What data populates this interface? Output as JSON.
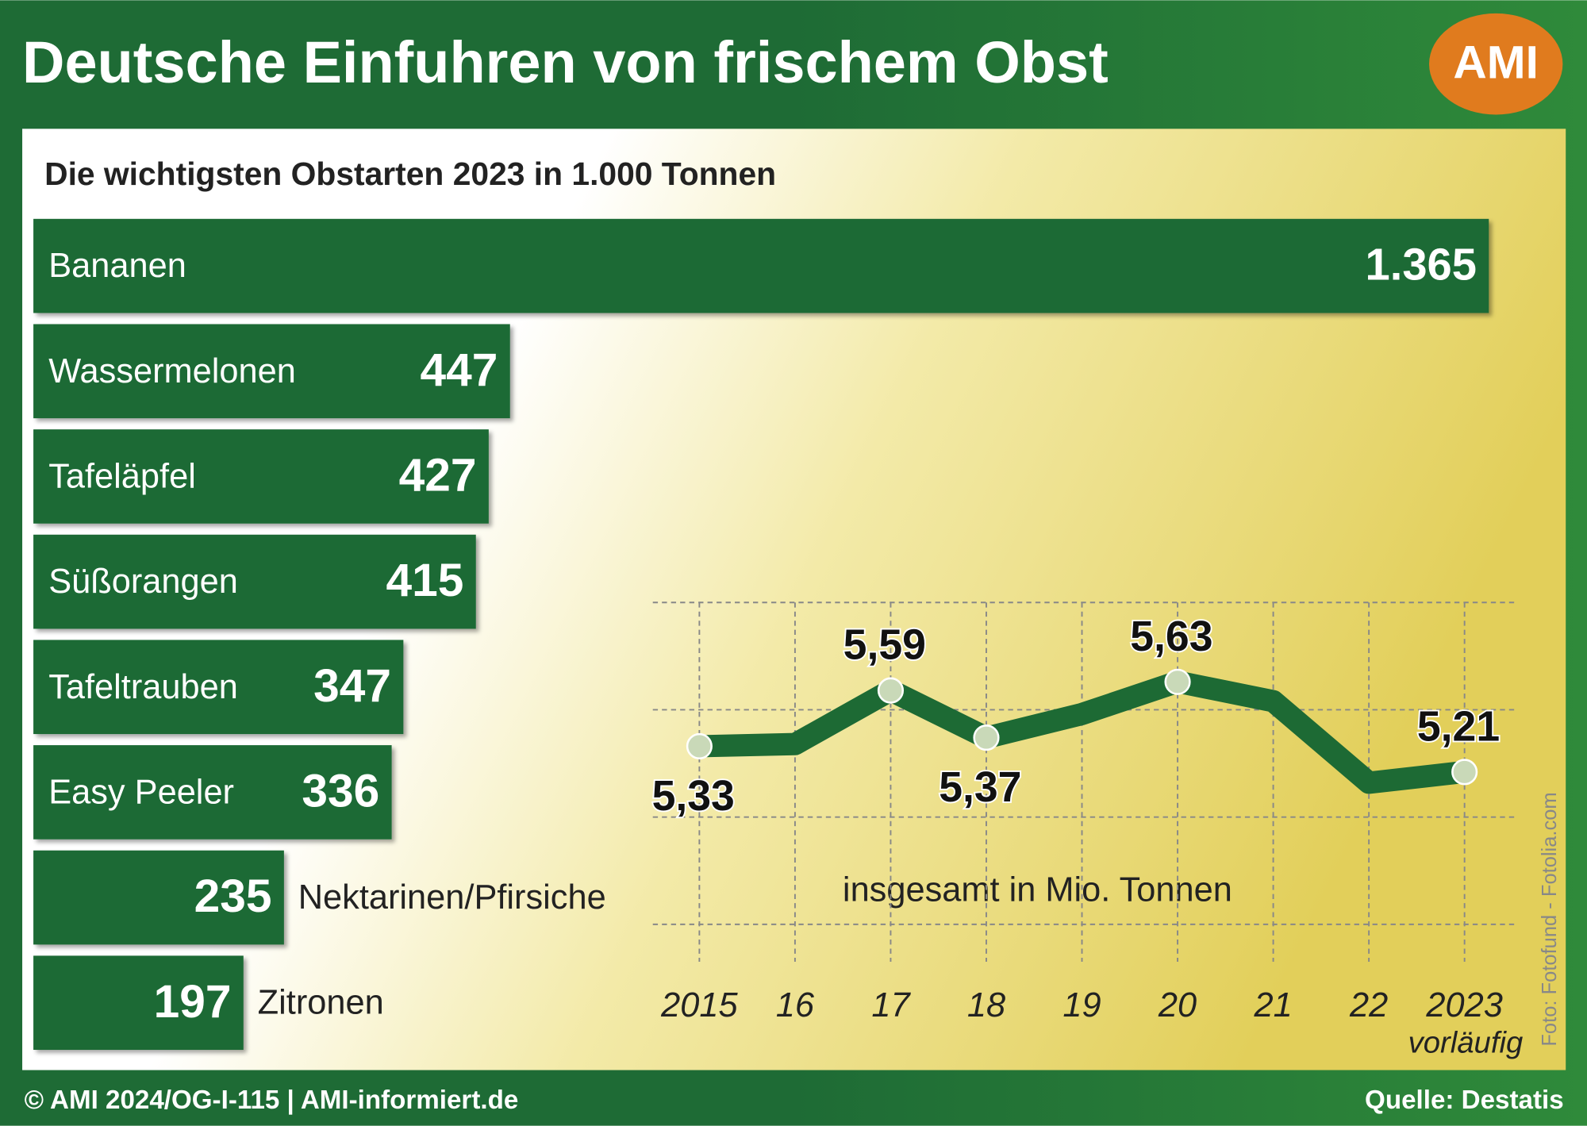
{
  "title": "Deutsche Einfuhren von frischem Obst",
  "logo": "AMI",
  "footer_left": "© AMI 2024/OG-I-115 | AMI-informiert.de",
  "source": "Quelle: Destatis",
  "photo_credit": "Foto: Fotofund - Fotolia.com",
  "chart_data": [
    {
      "type": "hbar",
      "title": "Die wichtigsten Obstarten 2023 in 1.000 Tonnen",
      "categories": [
        "Bananen",
        "Wassermelonen",
        "Tafeläpfel",
        "Süßorangen",
        "Tafeltrauben",
        "Easy Peeler",
        "Nektarinen/Pfirsiche",
        "Zitronen"
      ],
      "values": [
        1365,
        447,
        427,
        415,
        347,
        336,
        235,
        197
      ],
      "value_labels": [
        "1.365",
        "447",
        "427",
        "415",
        "347",
        "336",
        "235",
        "197"
      ],
      "color": "#1d6a34",
      "xlim": [
        0,
        1365
      ]
    },
    {
      "type": "line",
      "subtitle": "insgesamt in Mio. Tonnen",
      "annotation": "vorläufig",
      "categories": [
        "2015",
        "16",
        "17",
        "18",
        "19",
        "20",
        "21",
        "22",
        "2023"
      ],
      "values": [
        5.33,
        5.34,
        5.59,
        5.37,
        5.48,
        5.63,
        5.54,
        5.16,
        5.21
      ],
      "value_labels": [
        "5,33",
        null,
        "5,59",
        "5,37",
        null,
        "5,63",
        null,
        null,
        "5,21"
      ],
      "color": "#1d6a34",
      "ylim": [
        4.5,
        6.0
      ],
      "yticks": [
        4.5,
        5,
        5.5,
        6
      ],
      "grid": true
    }
  ]
}
